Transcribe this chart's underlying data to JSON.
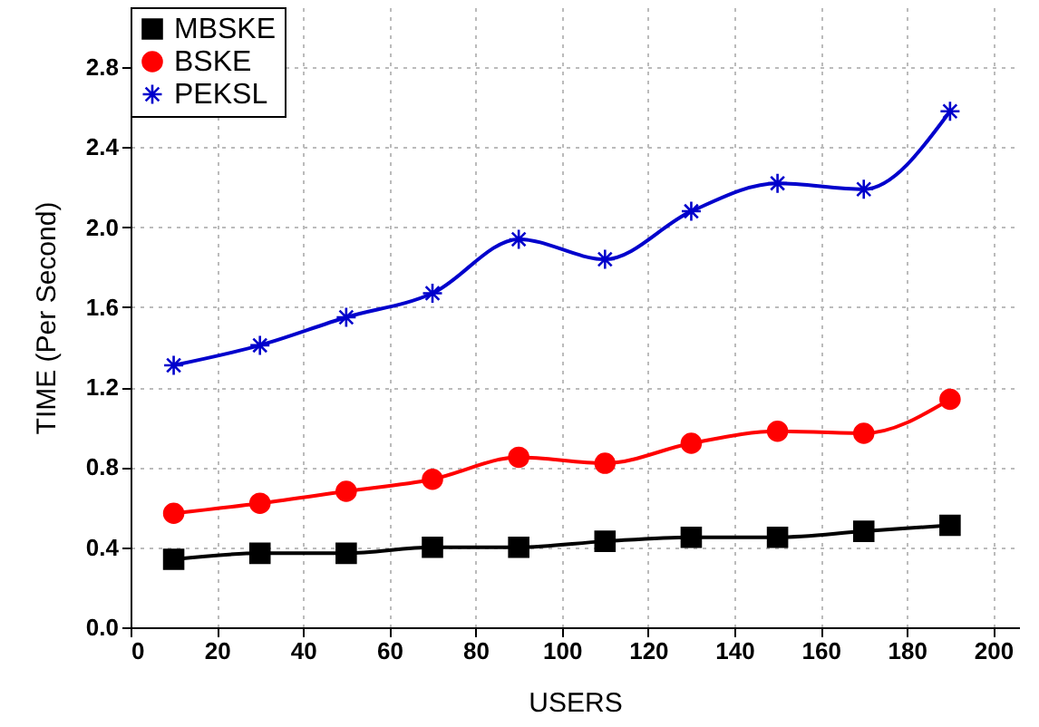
{
  "chart_data": {
    "type": "line",
    "xlabel": "USERS",
    "ylabel": "TIME (Per Second)",
    "x": [
      10,
      30,
      50,
      70,
      90,
      110,
      130,
      150,
      170,
      190
    ],
    "series": [
      {
        "name": "MBSKE",
        "color": "#000000",
        "marker": "square",
        "values": [
          0.34,
          0.37,
          0.37,
          0.4,
          0.4,
          0.43,
          0.45,
          0.45,
          0.48,
          0.51
        ]
      },
      {
        "name": "BSKE",
        "color": "#ff0000",
        "marker": "circle",
        "values": [
          0.57,
          0.62,
          0.68,
          0.74,
          0.85,
          0.82,
          0.92,
          0.98,
          0.97,
          1.14
        ]
      },
      {
        "name": "PEKSL",
        "color": "#0000cc",
        "marker": "cross",
        "values": [
          1.31,
          1.41,
          1.55,
          1.67,
          1.94,
          1.84,
          2.08,
          2.22,
          2.19,
          2.58
        ]
      }
    ],
    "xlim": [
      0,
      206
    ],
    "xticks": [
      0,
      20,
      40,
      60,
      80,
      100,
      120,
      140,
      160,
      180,
      200
    ],
    "ylim": [
      0,
      3.1
    ],
    "yticks": [
      {
        "value": 0,
        "label": "0.0"
      },
      0.4,
      0.8,
      1.2,
      1.6,
      {
        "value": 2,
        "label": "2.0"
      },
      2.4,
      2.8
    ],
    "grid": true,
    "legend": "top left",
    "line_style": "solid"
  }
}
